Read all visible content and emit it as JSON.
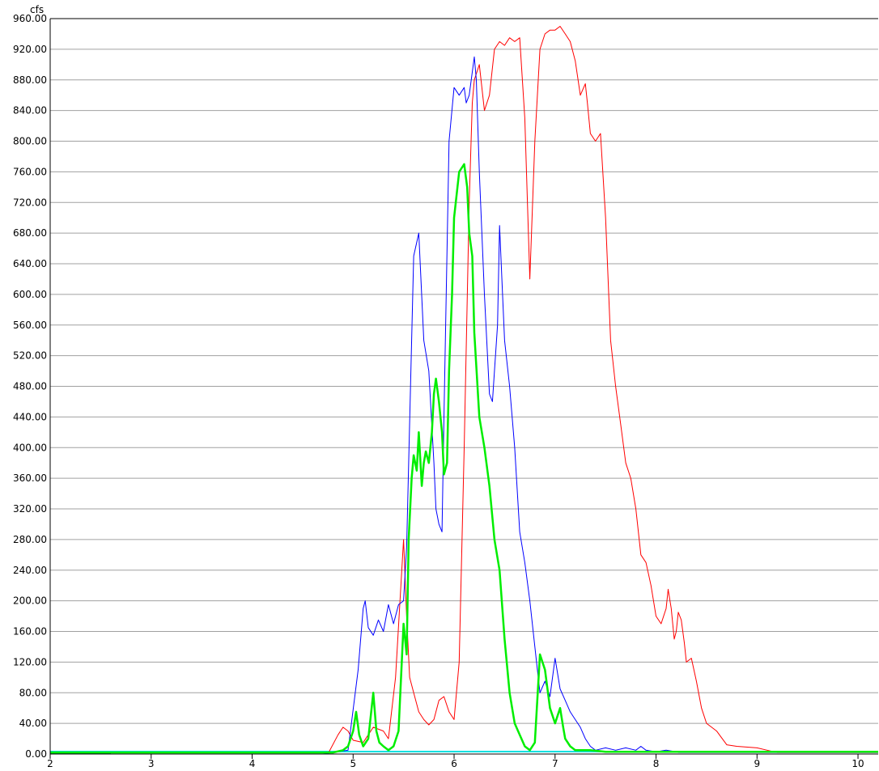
{
  "chart_data": {
    "type": "line",
    "title": "",
    "xlabel": "",
    "ylabel": "",
    "unit_label": "cfs",
    "xlim": [
      2,
      10.2
    ],
    "ylim": [
      0,
      960
    ],
    "x_ticks": [
      2,
      3,
      4,
      5,
      6,
      7,
      8,
      9,
      10
    ],
    "y_ticks": [
      0,
      40,
      80,
      120,
      160,
      200,
      240,
      280,
      320,
      360,
      400,
      440,
      480,
      520,
      560,
      600,
      640,
      680,
      720,
      760,
      800,
      840,
      880,
      920,
      960
    ],
    "grid": "horizontal",
    "legend": "none",
    "colors": {
      "grid": "#a0a0a0",
      "axis": "#000000",
      "baseline_cyan": "#00e0e0",
      "baseline_navy": "#000080"
    },
    "series": [
      {
        "color": "#ff0000",
        "stroke_width": 1,
        "x": [
          2.0,
          4.75,
          4.85,
          4.9,
          4.95,
          5.0,
          5.1,
          5.2,
          5.3,
          5.35,
          5.42,
          5.5,
          5.53,
          5.56,
          5.6,
          5.65,
          5.7,
          5.75,
          5.8,
          5.85,
          5.9,
          5.95,
          6.0,
          6.05,
          6.1,
          6.15,
          6.18,
          6.2,
          6.25,
          6.3,
          6.35,
          6.4,
          6.45,
          6.5,
          6.55,
          6.6,
          6.65,
          6.7,
          6.75,
          6.8,
          6.85,
          6.9,
          6.95,
          7.0,
          7.05,
          7.1,
          7.15,
          7.2,
          7.25,
          7.3,
          7.32,
          7.35,
          7.4,
          7.45,
          7.5,
          7.55,
          7.6,
          7.65,
          7.7,
          7.75,
          7.8,
          7.85,
          7.9,
          7.95,
          8.0,
          8.05,
          8.1,
          8.12,
          8.15,
          8.18,
          8.2,
          8.22,
          8.25,
          8.28,
          8.3,
          8.35,
          8.4,
          8.45,
          8.5,
          8.55,
          8.6,
          8.7,
          8.8,
          9.0,
          9.1,
          9.2,
          10.2
        ],
        "values": [
          0,
          0,
          25,
          35,
          30,
          18,
          15,
          35,
          30,
          20,
          100,
          280,
          180,
          100,
          80,
          55,
          45,
          38,
          45,
          70,
          75,
          55,
          45,
          120,
          400,
          720,
          850,
          880,
          900,
          840,
          860,
          920,
          930,
          925,
          935,
          930,
          935,
          830,
          620,
          800,
          920,
          940,
          945,
          945,
          950,
          940,
          930,
          905,
          860,
          875,
          850,
          810,
          800,
          810,
          700,
          540,
          480,
          430,
          380,
          360,
          320,
          260,
          250,
          220,
          180,
          170,
          190,
          215,
          190,
          150,
          160,
          185,
          175,
          145,
          120,
          125,
          95,
          60,
          40,
          35,
          30,
          12,
          10,
          8,
          5,
          2,
          2
        ]
      },
      {
        "color": "#0000ff",
        "stroke_width": 1,
        "x": [
          2.0,
          4.7,
          4.95,
          5.05,
          5.1,
          5.12,
          5.15,
          5.2,
          5.25,
          5.3,
          5.35,
          5.4,
          5.45,
          5.5,
          5.53,
          5.55,
          5.6,
          5.65,
          5.7,
          5.75,
          5.8,
          5.82,
          5.85,
          5.88,
          5.9,
          5.95,
          6.0,
          6.05,
          6.1,
          6.12,
          6.15,
          6.2,
          6.22,
          6.25,
          6.3,
          6.35,
          6.38,
          6.4,
          6.43,
          6.45,
          6.48,
          6.5,
          6.55,
          6.6,
          6.65,
          6.7,
          6.75,
          6.8,
          6.85,
          6.9,
          6.95,
          7.0,
          7.05,
          7.1,
          7.15,
          7.2,
          7.25,
          7.3,
          7.35,
          7.4,
          7.5,
          7.6,
          7.7,
          7.8,
          7.85,
          7.9,
          8.0,
          8.1,
          8.2,
          8.22,
          10.2
        ],
        "values": [
          0,
          0,
          5,
          110,
          190,
          200,
          165,
          155,
          175,
          160,
          195,
          170,
          195,
          200,
          270,
          380,
          650,
          680,
          540,
          500,
          380,
          320,
          300,
          290,
          440,
          800,
          870,
          860,
          870,
          850,
          860,
          910,
          880,
          760,
          600,
          470,
          460,
          500,
          560,
          690,
          600,
          540,
          480,
          400,
          290,
          250,
          200,
          140,
          80,
          95,
          75,
          125,
          85,
          70,
          55,
          45,
          35,
          20,
          10,
          5,
          8,
          5,
          8,
          5,
          10,
          5,
          3,
          5,
          3,
          2,
          2
        ]
      },
      {
        "color": "#00ee00",
        "stroke_width": 2.5,
        "x": [
          2.0,
          4.8,
          4.9,
          4.95,
          5.0,
          5.03,
          5.06,
          5.1,
          5.15,
          5.2,
          5.23,
          5.26,
          5.3,
          5.35,
          5.4,
          5.45,
          5.5,
          5.53,
          5.55,
          5.58,
          5.6,
          5.63,
          5.65,
          5.68,
          5.7,
          5.72,
          5.75,
          5.78,
          5.8,
          5.82,
          5.85,
          5.88,
          5.9,
          5.93,
          5.95,
          5.98,
          6.0,
          6.05,
          6.1,
          6.13,
          6.15,
          6.18,
          6.2,
          6.25,
          6.3,
          6.35,
          6.4,
          6.45,
          6.5,
          6.55,
          6.6,
          6.65,
          6.7,
          6.75,
          6.8,
          6.85,
          6.9,
          6.95,
          7.0,
          7.05,
          7.08,
          7.1,
          7.15,
          7.2,
          7.25,
          7.3,
          7.35,
          7.5,
          9.0,
          10.2
        ],
        "values": [
          2,
          2,
          5,
          10,
          30,
          55,
          25,
          10,
          20,
          80,
          30,
          15,
          10,
          5,
          10,
          30,
          170,
          130,
          280,
          360,
          390,
          370,
          420,
          350,
          380,
          395,
          380,
          420,
          470,
          490,
          460,
          420,
          365,
          380,
          500,
          600,
          700,
          760,
          770,
          740,
          680,
          650,
          550,
          440,
          400,
          350,
          280,
          240,
          150,
          80,
          40,
          25,
          10,
          5,
          15,
          130,
          110,
          60,
          40,
          60,
          35,
          20,
          10,
          5,
          5,
          5,
          5,
          3,
          3,
          3
        ]
      }
    ]
  }
}
